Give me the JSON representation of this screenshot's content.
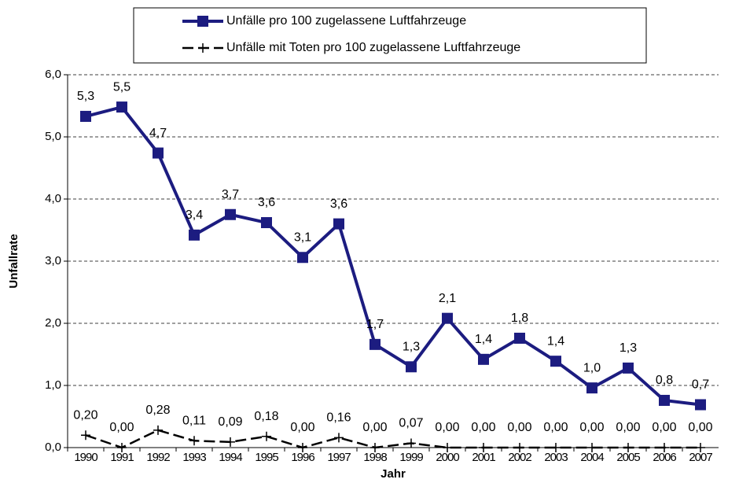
{
  "chart_data": {
    "type": "line",
    "x_label": "Jahr",
    "y_label": "Unfallrate",
    "categories": [
      "1990",
      "1991",
      "1992",
      "1993",
      "1994",
      "1995",
      "1996",
      "1997",
      "1998",
      "1999",
      "2000",
      "2001",
      "2002",
      "2003",
      "2004",
      "2005",
      "2006",
      "2007"
    ],
    "series": [
      {
        "name": "Unfälle pro 100 zugelassene Luftfahrzeuge",
        "color": "#1c1c80",
        "marker": "square",
        "values": [
          5.33,
          5.48,
          4.74,
          3.42,
          3.75,
          3.62,
          3.06,
          3.6,
          1.66,
          1.3,
          2.08,
          1.42,
          1.76,
          1.39,
          0.96,
          1.28,
          0.76,
          0.69
        ],
        "value_labels": [
          "5,3",
          "5,5",
          "4,7",
          "3,4",
          "3,7",
          "3,6",
          "3,1",
          "3,6",
          "1,7",
          "1,3",
          "2,1",
          "1,4",
          "1,8",
          "1,4",
          "1,0",
          "1,3",
          "0,8",
          "0,7"
        ]
      },
      {
        "name": "Unfälle mit Toten pro 100 zugelassene Luftfahrzeuge",
        "color": "#000000",
        "marker": "plus",
        "values": [
          0.2,
          0,
          0.28,
          0.11,
          0.09,
          0.18,
          0,
          0.16,
          0,
          0.07,
          0,
          0,
          0,
          0,
          0,
          0,
          0,
          0
        ],
        "value_labels": [
          "0,20",
          "0,00",
          "0,28",
          "0,11",
          "0,09",
          "0,18",
          "0,00",
          "0,16",
          "0,00",
          "0,07",
          "0,00",
          "0,00",
          "0,00",
          "0,00",
          "0,00",
          "0,00",
          "0,00",
          "0,00"
        ]
      }
    ],
    "ylim": [
      0,
      6
    ],
    "yticks": [
      {
        "value": 0,
        "label": "0,0"
      },
      {
        "value": 1,
        "label": "1,0"
      },
      {
        "value": 2,
        "label": "2,0"
      },
      {
        "value": 3,
        "label": "3,0"
      },
      {
        "value": 4,
        "label": "4,0"
      },
      {
        "value": 5,
        "label": "5,0"
      },
      {
        "value": 6,
        "label": "6,0"
      }
    ],
    "grid": true,
    "legend": "top"
  }
}
